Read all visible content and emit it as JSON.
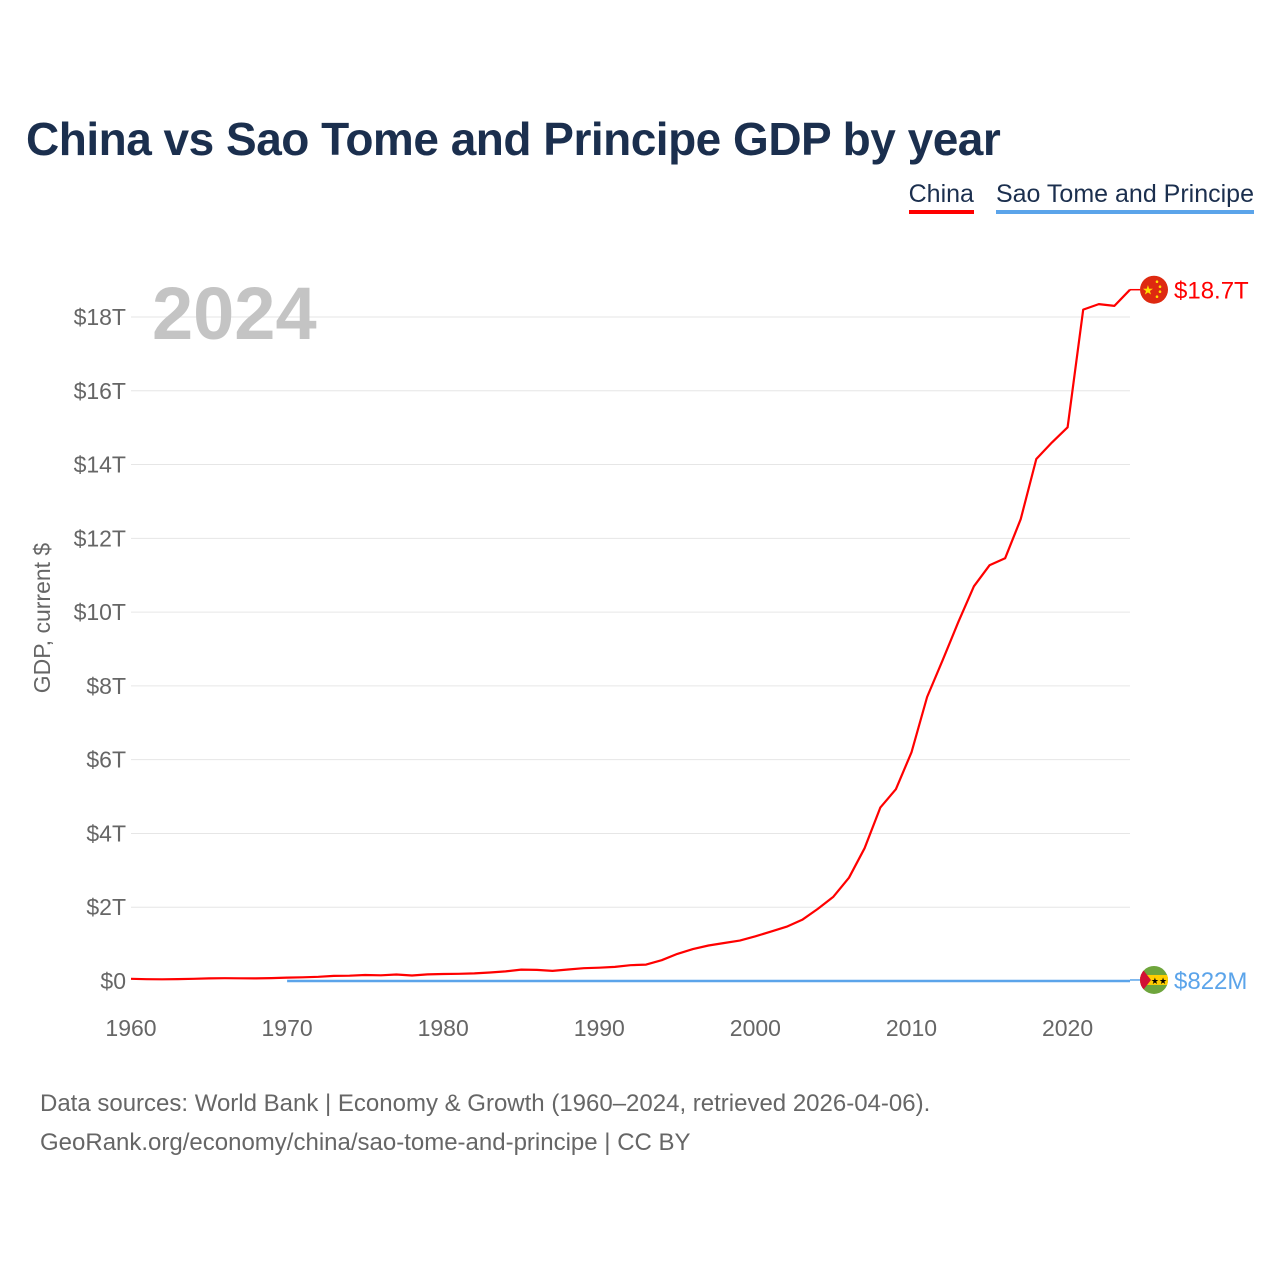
{
  "chart_data": {
    "type": "line",
    "title": "China vs Sao Tome and Principe GDP by year",
    "ylabel": "GDP, current $",
    "xlabel": "",
    "xlim": [
      1960,
      2024
    ],
    "ylim": [
      0,
      18
    ],
    "y_unit": "trillion USD",
    "grid": true,
    "legend_position": "top-right",
    "year_label": "2024",
    "x_ticks": [
      1960,
      1970,
      1980,
      1990,
      2000,
      2010,
      2020
    ],
    "x_tick_labels": [
      "1960",
      "1970",
      "1980",
      "1990",
      "2000",
      "2010",
      "2020"
    ],
    "y_ticks": [
      0,
      2,
      4,
      6,
      8,
      10,
      12,
      14,
      16,
      18
    ],
    "y_tick_labels": [
      "$0",
      "$2T",
      "$4T",
      "$6T",
      "$8T",
      "$10T",
      "$12T",
      "$14T",
      "$16T",
      "$18T"
    ],
    "series": [
      {
        "name": "China",
        "color": "#ff0000",
        "end_label": "$18.7T",
        "flag": "china-flag",
        "x": [
          1960,
          1961,
          1962,
          1963,
          1964,
          1965,
          1966,
          1967,
          1968,
          1969,
          1970,
          1971,
          1972,
          1973,
          1974,
          1975,
          1976,
          1977,
          1978,
          1979,
          1980,
          1981,
          1982,
          1983,
          1984,
          1985,
          1986,
          1987,
          1988,
          1989,
          1990,
          1991,
          1992,
          1993,
          1994,
          1995,
          1996,
          1997,
          1998,
          1999,
          2000,
          2001,
          2002,
          2003,
          2004,
          2005,
          2006,
          2007,
          2008,
          2009,
          2010,
          2011,
          2012,
          2013,
          2014,
          2015,
          2016,
          2017,
          2018,
          2019,
          2020,
          2021,
          2022,
          2023,
          2024
        ],
        "values": [
          0.06,
          0.05,
          0.047,
          0.051,
          0.059,
          0.07,
          0.076,
          0.072,
          0.07,
          0.079,
          0.092,
          0.099,
          0.114,
          0.139,
          0.144,
          0.163,
          0.154,
          0.175,
          0.15,
          0.178,
          0.191,
          0.196,
          0.205,
          0.23,
          0.26,
          0.309,
          0.301,
          0.273,
          0.313,
          0.348,
          0.361,
          0.383,
          0.427,
          0.445,
          0.564,
          0.734,
          0.864,
          0.962,
          1.029,
          1.094,
          1.211,
          1.339,
          1.471,
          1.66,
          1.955,
          2.286,
          2.8,
          3.6,
          4.7,
          5.2,
          6.2,
          7.7,
          8.7,
          9.73,
          10.7,
          11.27,
          11.46,
          12.52,
          14.15,
          14.6,
          15.01,
          18.2,
          18.35,
          18.3,
          18.74
        ]
      },
      {
        "name": "Sao Tome and Principe",
        "color": "#5ba4ea",
        "end_label": "$822M",
        "flag": "sao-tome-flag",
        "x": [
          1970,
          1980,
          1990,
          2000,
          2010,
          2020,
          2024
        ],
        "values": [
          3e-05,
          5e-05,
          6e-05,
          8e-05,
          0.0002,
          0.00047,
          0.000822
        ]
      }
    ],
    "footer": {
      "line1": "Data sources: World Bank | Economy & Growth (1960–2024, retrieved 2026-04-06).",
      "line2": "GeoRank.org/economy/china/sao-tome-and-principe | CC BY"
    }
  }
}
